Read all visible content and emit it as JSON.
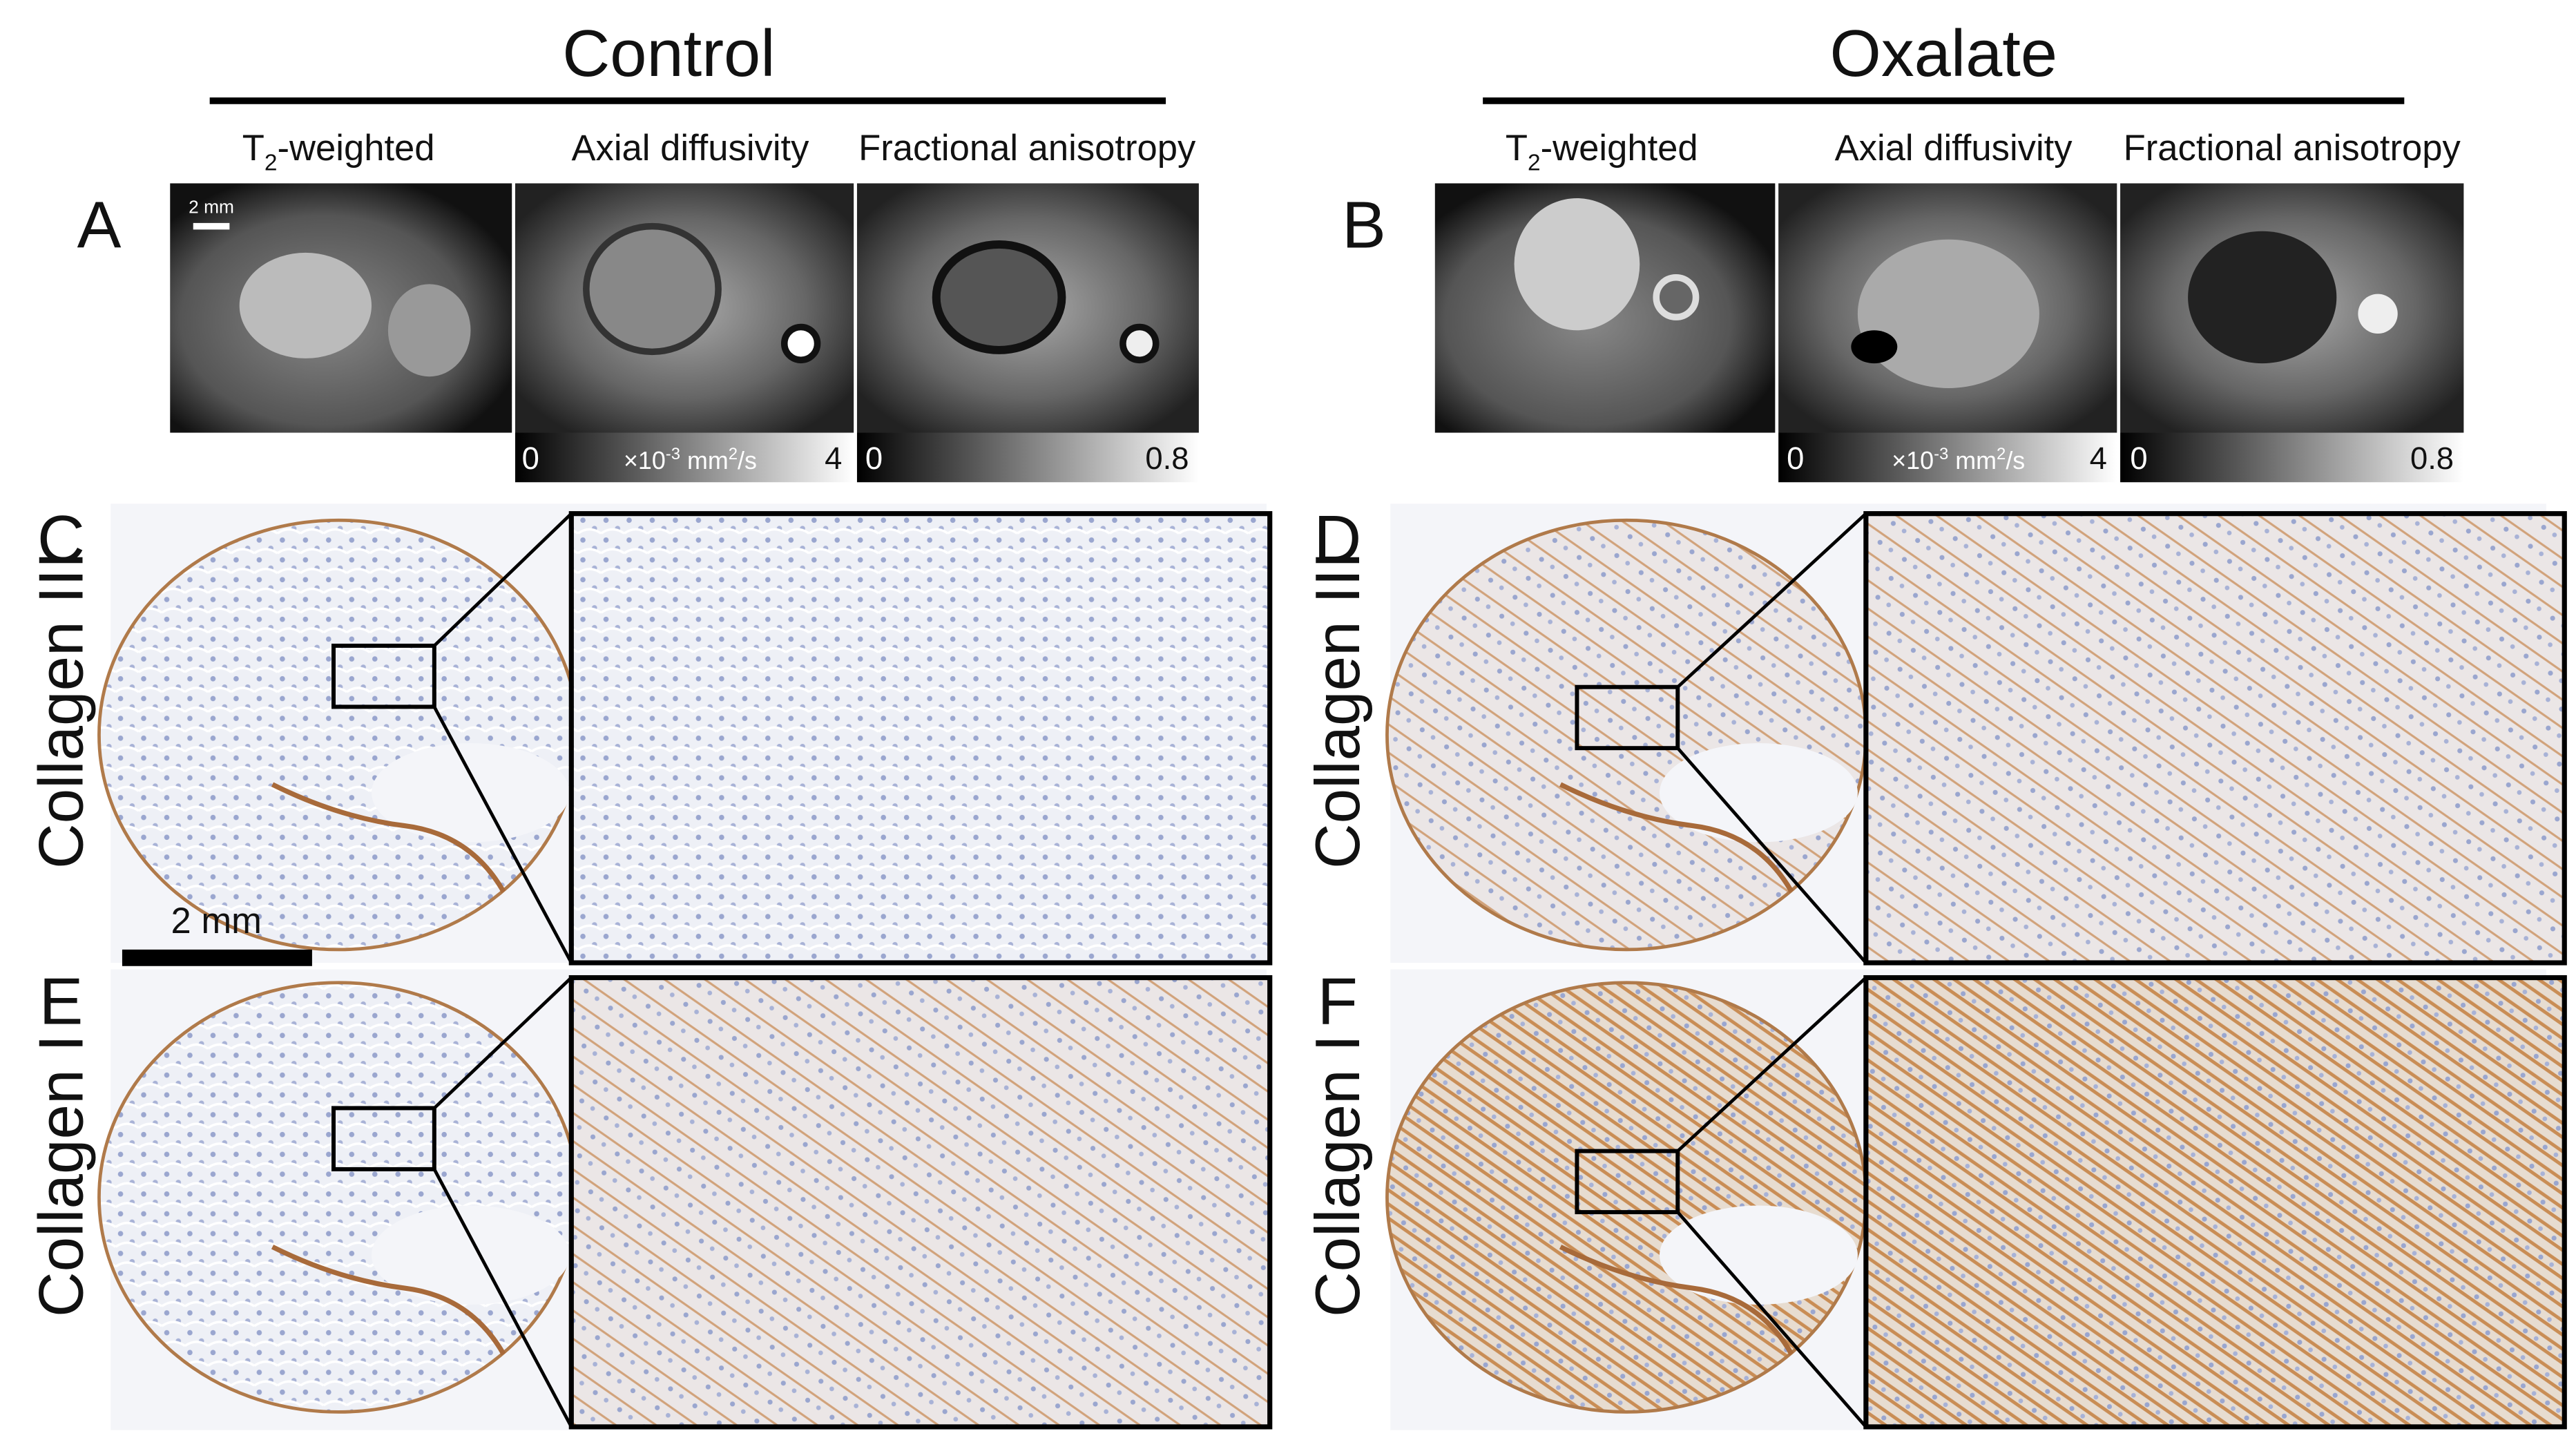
{
  "groups": [
    {
      "title": "Control",
      "mri": {
        "label": "A",
        "scale_bar": "2 mm",
        "columns": [
          {
            "title": {
              "main": "T",
              "sub": "2",
              "rest": "-weighted"
            }
          },
          {
            "title": "Axial diffusivity",
            "colorbar": {
              "min": 0,
              "unit": {
                "main": "×10",
                "sup": "-3",
                "mid": " mm",
                "sup2": "2",
                "rest": "/s"
              },
              "max": 4
            }
          },
          {
            "title": "Fractional anisotropy",
            "colorbar": {
              "min": 0,
              "max": 0.8
            }
          }
        ]
      },
      "histology": {
        "scale_bar": "2 mm",
        "rows": [
          {
            "label": "C",
            "stain": "Collagen III"
          },
          {
            "label": "E",
            "stain": "Collagen I"
          }
        ]
      }
    },
    {
      "title": "Oxalate",
      "mri": {
        "label": "B",
        "columns": [
          {
            "title": {
              "main": "T",
              "sub": "2",
              "rest": "-weighted"
            }
          },
          {
            "title": "Axial diffusivity",
            "colorbar": {
              "min": 0,
              "unit": {
                "main": "×10",
                "sup": "-3",
                "mid": " mm",
                "sup2": "2",
                "rest": "/s"
              },
              "max": 4
            }
          },
          {
            "title": "Fractional anisotropy",
            "colorbar": {
              "min": 0,
              "max": 0.8
            }
          }
        ]
      },
      "histology": {
        "rows": [
          {
            "label": "D",
            "stain": "Collagen III"
          },
          {
            "label": "F",
            "stain": "Collagen I"
          }
        ]
      }
    }
  ]
}
